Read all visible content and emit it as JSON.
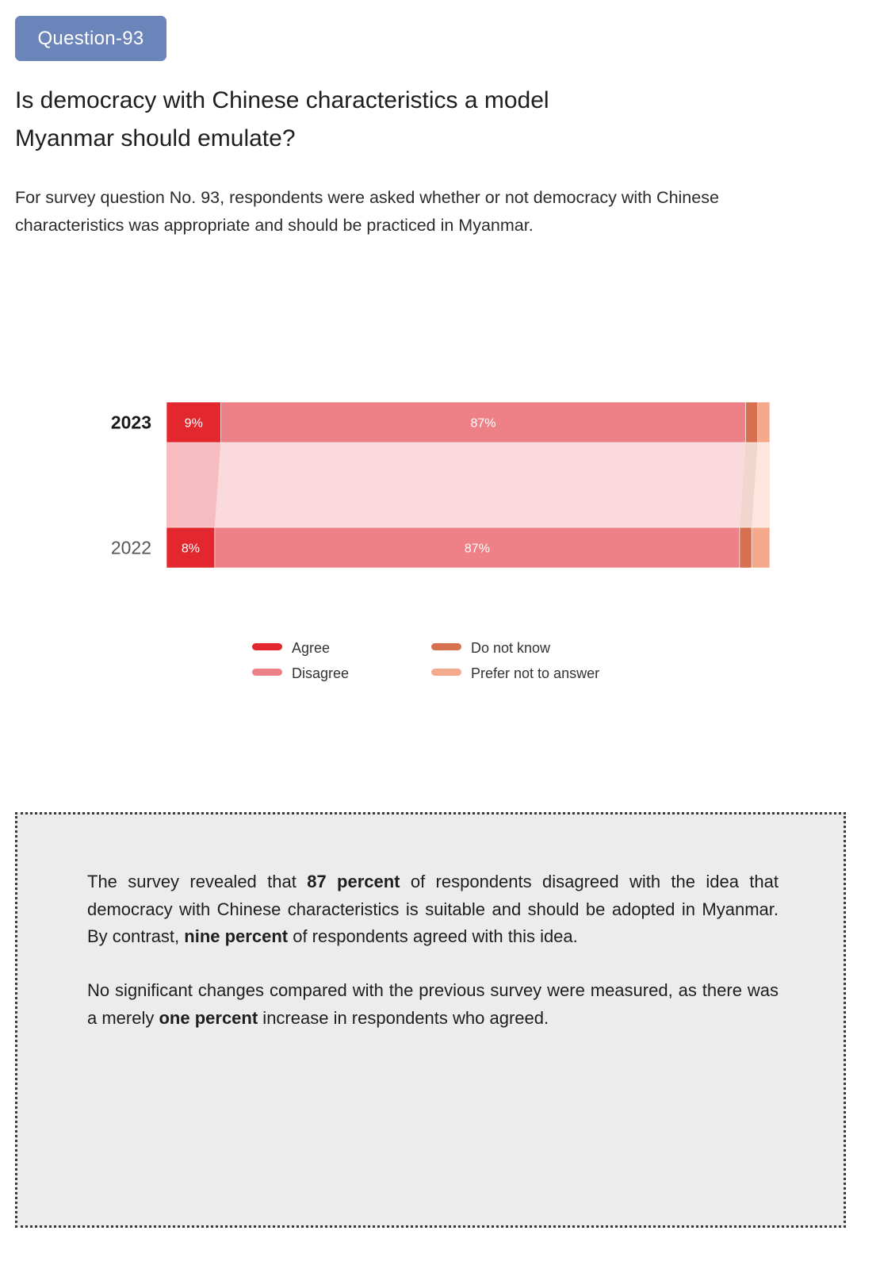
{
  "badge": "Question-93",
  "title_line1": "Is democracy with Chinese characteristics a model",
  "title_line2": "Myanmar should emulate?",
  "intro_line1": "For survey question No. 93, respondents were asked whether or not democracy with Chinese",
  "intro_line2": "characteristics was appropriate and should be practiced in Myanmar.",
  "colors": {
    "agree": "#e2272e",
    "disagree": "#ee8088",
    "dont_know": "#d6704e",
    "prefer_not": "#f4a88c",
    "agree_band": "#f7bcbf",
    "disagree_band": "#fadadd",
    "dont_know_band": "#f0d6cc",
    "prefer_not_band": "#fce6dd"
  },
  "chart_data": {
    "type": "bar",
    "stacked": true,
    "orientation": "horizontal",
    "categories": [
      "2023",
      "2022"
    ],
    "series": [
      {
        "name": "Agree",
        "values": [
          9,
          8
        ],
        "labels": [
          "9%",
          "8%"
        ]
      },
      {
        "name": "Disagree",
        "values": [
          87,
          87
        ],
        "labels": [
          "87%",
          "87%"
        ]
      },
      {
        "name": "Do not know",
        "values": [
          2,
          2
        ],
        "labels": [
          "",
          ""
        ]
      },
      {
        "name": "Prefer not to answer",
        "values": [
          2,
          3
        ],
        "labels": [
          "",
          ""
        ]
      }
    ],
    "xlim": [
      0,
      100
    ],
    "legend_position": "bottom"
  },
  "summary": {
    "p1_a": "The survey revealed that ",
    "p1_b": "87 percent",
    "p1_c": " of respondents disagreed with the idea that democracy with Chinese characteristics is suitable and should be adopted in Myanmar. By contrast, ",
    "p1_d": "nine percent",
    "p1_e": " of respondents agreed with this idea.",
    "p2_a": "No significant changes compared with the previous survey were measured, as there was a merely ",
    "p2_b": "one percent",
    "p2_c": " increase in respondents who agreed."
  }
}
